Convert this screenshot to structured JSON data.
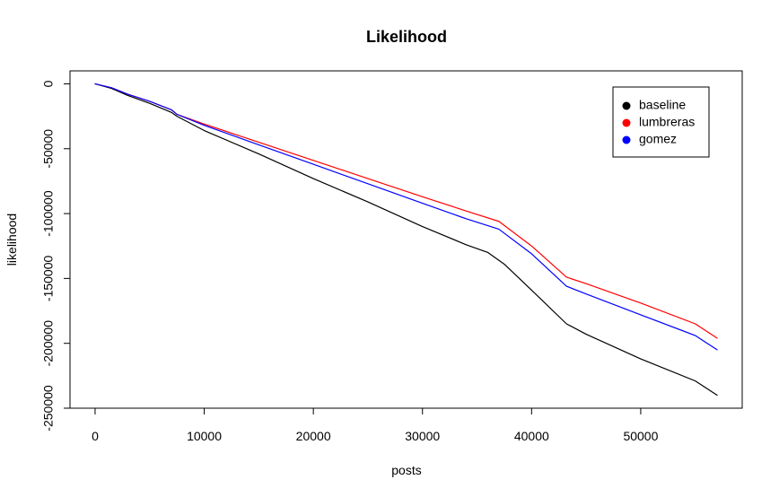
{
  "chart_data": {
    "type": "line",
    "title": "Likelihood",
    "xlabel": "posts",
    "ylabel": "likelihood",
    "xlim": [
      -2300,
      59300
    ],
    "ylim": [
      -250000,
      10000
    ],
    "x_ticks": [
      0,
      10000,
      20000,
      30000,
      40000,
      50000
    ],
    "x_tick_labels": [
      "0",
      "10000",
      "20000",
      "30000",
      "40000",
      "50000"
    ],
    "y_ticks": [
      0,
      -50000,
      -100000,
      -150000,
      -200000,
      -250000
    ],
    "y_tick_labels": [
      "0",
      "-50000",
      "-100000",
      "-150000",
      "-200000",
      "-250000"
    ],
    "grid": false,
    "legend_position": "top-right",
    "series": [
      {
        "name": "baseline",
        "color": "#000000",
        "points": [
          [
            0,
            0
          ],
          [
            1500,
            -3500
          ],
          [
            3000,
            -9000
          ],
          [
            5000,
            -15000
          ],
          [
            7000,
            -22000
          ],
          [
            7500,
            -25000
          ],
          [
            10000,
            -36000
          ],
          [
            15000,
            -54000
          ],
          [
            20000,
            -73000
          ],
          [
            25000,
            -91000
          ],
          [
            30000,
            -110000
          ],
          [
            34000,
            -124000
          ],
          [
            36000,
            -130000
          ],
          [
            37500,
            -139000
          ],
          [
            40000,
            -159000
          ],
          [
            43200,
            -185000
          ],
          [
            45000,
            -193000
          ],
          [
            50000,
            -212000
          ],
          [
            55000,
            -229000
          ],
          [
            57000,
            -240000
          ]
        ]
      },
      {
        "name": "lumbreras",
        "color": "#ff0000",
        "points": [
          [
            0,
            0
          ],
          [
            1500,
            -3000
          ],
          [
            3000,
            -8000
          ],
          [
            5000,
            -13500
          ],
          [
            7000,
            -20000
          ],
          [
            7500,
            -23500
          ],
          [
            10000,
            -31000
          ],
          [
            15000,
            -45000
          ],
          [
            20000,
            -59000
          ],
          [
            25000,
            -73000
          ],
          [
            30000,
            -87000
          ],
          [
            34000,
            -98000
          ],
          [
            37000,
            -106000
          ],
          [
            40000,
            -125000
          ],
          [
            43200,
            -149000
          ],
          [
            45000,
            -154000
          ],
          [
            50000,
            -169000
          ],
          [
            55000,
            -185000
          ],
          [
            57000,
            -196000
          ]
        ]
      },
      {
        "name": "gomez",
        "color": "#0000ff",
        "points": [
          [
            0,
            0
          ],
          [
            1500,
            -3000
          ],
          [
            3000,
            -8000
          ],
          [
            5000,
            -13500
          ],
          [
            7000,
            -20000
          ],
          [
            7500,
            -23500
          ],
          [
            10000,
            -32000
          ],
          [
            15000,
            -47000
          ],
          [
            20000,
            -62000
          ],
          [
            25000,
            -77000
          ],
          [
            30000,
            -92000
          ],
          [
            34000,
            -104000
          ],
          [
            37000,
            -112000
          ],
          [
            40000,
            -131000
          ],
          [
            43200,
            -156000
          ],
          [
            45000,
            -162000
          ],
          [
            50000,
            -178000
          ],
          [
            55000,
            -194000
          ],
          [
            57000,
            -205000
          ]
        ]
      }
    ]
  }
}
